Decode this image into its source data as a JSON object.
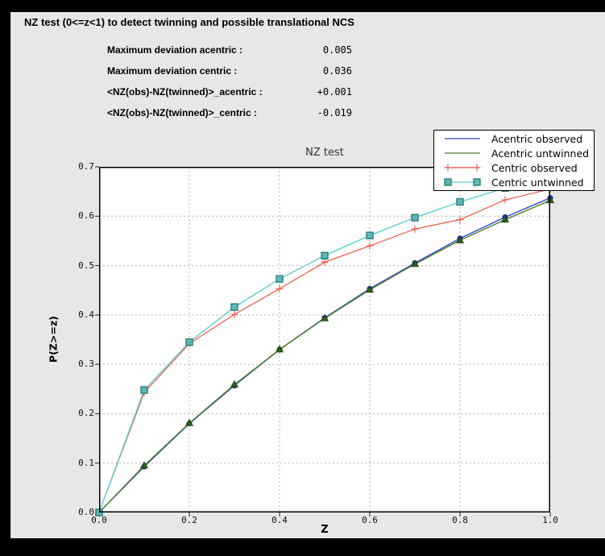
{
  "header": {
    "title": "NZ test (0<=z<1) to detect twinning and possible translational NCS",
    "stats": [
      {
        "label": "Maximum deviation acentric :",
        "value": "0.005"
      },
      {
        "label": "Maximum deviation centric :",
        "value": "0.036"
      },
      {
        "label": "<NZ(obs)-NZ(twinned)>_acentric :",
        "value": "+0.001"
      },
      {
        "label": "<NZ(obs)-NZ(twinned)>_centric :",
        "value": "-0.019"
      }
    ]
  },
  "colors": {
    "window_background": "#000000",
    "panel_background": "#e7e7e7",
    "plot_background": "#ffffff",
    "grid": "#b3b3b3",
    "frame": "#000000"
  },
  "chart_data": {
    "type": "line",
    "title": "NZ test",
    "xlabel": "Z",
    "ylabel": "P(Z>=z)",
    "xlim": [
      0.0,
      1.0
    ],
    "ylim": [
      0.0,
      0.7
    ],
    "xticks": [
      0.0,
      0.2,
      0.4,
      0.6,
      0.8,
      1.0
    ],
    "yticks": [
      0.0,
      0.1,
      0.2,
      0.3,
      0.4,
      0.5,
      0.6,
      0.7
    ],
    "grid": true,
    "legend_position": "top-right",
    "x": [
      0.0,
      0.1,
      0.2,
      0.3,
      0.4,
      0.5,
      0.6,
      0.7,
      0.8,
      0.9,
      1.0
    ],
    "series": [
      {
        "name": "Acentric observed",
        "color": "#2b43cf",
        "marker": "circle",
        "marker_fill": "#2235c5",
        "marker_edge": "#111d8e",
        "legend_marker": false,
        "values": [
          0.0,
          0.093,
          0.18,
          0.257,
          0.33,
          0.394,
          0.453,
          0.505,
          0.555,
          0.598,
          0.637
        ]
      },
      {
        "name": "Acentric untwinned",
        "color": "#4e8022",
        "marker": "triangle",
        "marker_fill": "#2c611a",
        "marker_edge": "#1e4a10",
        "legend_marker": false,
        "values": [
          0.0,
          0.095,
          0.181,
          0.259,
          0.33,
          0.393,
          0.451,
          0.503,
          0.551,
          0.593,
          0.632
        ]
      },
      {
        "name": "Centric observed",
        "color": "#ed4a32",
        "marker": "plus",
        "marker_fill": "#ed4a32",
        "marker_edge": "#ed4a32",
        "legend_marker": true,
        "values": [
          0.0,
          0.243,
          0.342,
          0.401,
          0.453,
          0.507,
          0.54,
          0.574,
          0.593,
          0.633,
          0.655
        ]
      },
      {
        "name": "Centric untwinned",
        "color": "#5ecfcf",
        "marker": "square",
        "marker_fill": "#5fb7b7",
        "marker_edge": "#2e7d7d",
        "legend_marker": true,
        "values": [
          0.0,
          0.248,
          0.345,
          0.416,
          0.473,
          0.52,
          0.561,
          0.597,
          0.629,
          0.657,
          0.683
        ]
      }
    ]
  }
}
